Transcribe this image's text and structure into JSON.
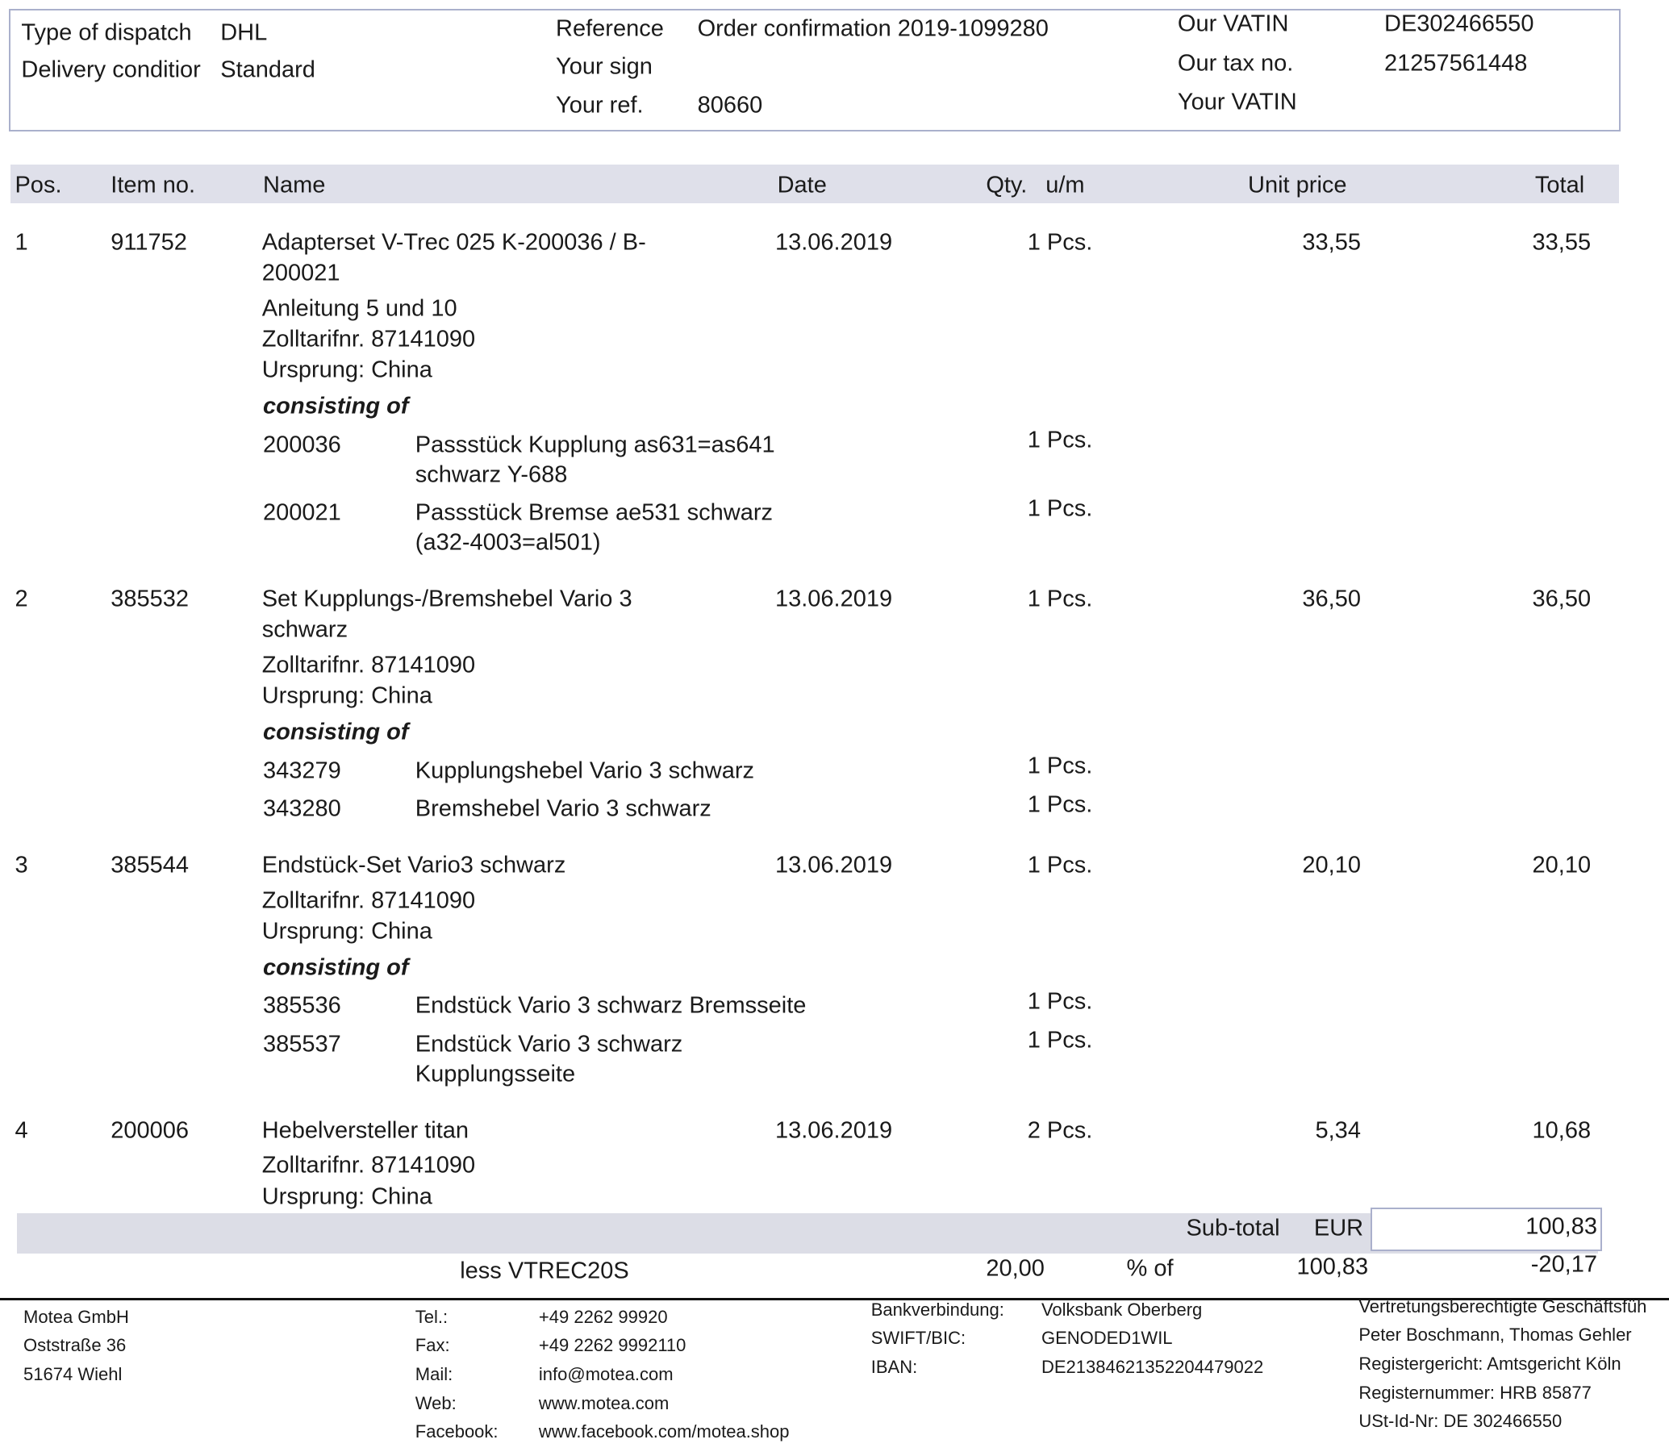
{
  "header": {
    "dispatch": [
      {
        "label": "Type of dispatch",
        "value": "DHL"
      },
      {
        "label": "Delivery conditior",
        "value": "Standard"
      }
    ],
    "reference": [
      {
        "label": "Reference",
        "value": "Order confirmation 2019-1099280"
      },
      {
        "label": "Your sign"
      },
      {
        "label": "Your ref.",
        "value": "80660"
      }
    ],
    "vat": [
      {
        "label": "Our VATIN",
        "value": "DE302466550"
      },
      {
        "label": "Our tax no.",
        "value": "21257561448"
      },
      {
        "label": "Your VATIN"
      }
    ]
  },
  "table": {
    "columns": [
      "Pos.",
      "Item no.",
      "Name",
      "Date",
      "Qty.",
      "u/m",
      "Unit price",
      "Total"
    ],
    "items": [
      {
        "pos": "1",
        "item_no": "911752",
        "name_lines": [
          "Adapterset V-Trec 025 K-200036 / B-",
          "200021"
        ],
        "notes": [
          "Anleitung 5 und 10",
          "Zolltarifnr. 87141090",
          "Ursprung: China"
        ],
        "date": "13.06.2019",
        "qty": "1 Pcs.",
        "unit_price": "33,55",
        "total": "33,55",
        "consisting_label": "consisting of",
        "components": [
          {
            "item_no": "200036",
            "name_lines": [
              "Passstück Kupplung as631=as641",
              "schwarz Y-688"
            ],
            "qty": "1 Pcs."
          },
          {
            "item_no": "200021",
            "name_lines": [
              "Passstück Bremse ae531 schwarz",
              "(a32-4003=al501)"
            ],
            "qty": "1 Pcs."
          }
        ]
      },
      {
        "pos": "2",
        "item_no": "385532",
        "name_lines": [
          "Set Kupplungs-/Bremshebel Vario 3",
          "schwarz"
        ],
        "notes": [
          "Zolltarifnr. 87141090",
          "Ursprung: China"
        ],
        "date": "13.06.2019",
        "qty": "1 Pcs.",
        "unit_price": "36,50",
        "total": "36,50",
        "consisting_label": "consisting of",
        "components": [
          {
            "item_no": "343279",
            "name_lines": [
              "Kupplungshebel Vario 3  schwarz"
            ],
            "qty": "1 Pcs."
          },
          {
            "item_no": "343280",
            "name_lines": [
              "Bremshebel Vario 3 schwarz"
            ],
            "qty": "1 Pcs."
          }
        ]
      },
      {
        "pos": "3",
        "item_no": "385544",
        "name_lines": [
          "Endstück-Set Vario3 schwarz"
        ],
        "notes": [
          "Zolltarifnr. 87141090",
          "Ursprung: China"
        ],
        "date": "13.06.2019",
        "qty": "1 Pcs.",
        "unit_price": "20,10",
        "total": "20,10",
        "consisting_label": "consisting of",
        "components": [
          {
            "item_no": "385536",
            "name_lines": [
              "Endstück Vario 3 schwarz Bremsseite"
            ],
            "qty": "1 Pcs."
          },
          {
            "item_no": "385537",
            "name_lines": [
              "Endstück Vario 3 schwarz",
              "Kupplungsseite"
            ],
            "qty": "1 Pcs."
          }
        ]
      },
      {
        "pos": "4",
        "item_no": "200006",
        "name_lines": [
          "Hebelversteller titan"
        ],
        "notes": [
          "Zolltarifnr. 87141090",
          "Ursprung: China"
        ],
        "date": "13.06.2019",
        "qty": "2 Pcs.",
        "unit_price": "5,34",
        "total": "10,68"
      }
    ]
  },
  "totals": {
    "subtotal_label": "Sub-total",
    "currency": "EUR",
    "subtotal": "100,83",
    "discount_label": "less VTREC20S",
    "discount_percent": "20,00",
    "of_label": "% of",
    "discount_base": "100,83",
    "discount_amount": "-20,17"
  },
  "footer": {
    "company": [
      "Motea GmbH",
      "Oststraße 36",
      "51674 Wiehl"
    ],
    "contacts": [
      {
        "label": "Tel.:",
        "value": "+49 2262 99920"
      },
      {
        "label": "Fax:",
        "value": "+49 2262 9992110"
      },
      {
        "label": "Mail:",
        "value": "info@motea.com"
      },
      {
        "label": "Web:",
        "value": "www.motea.com"
      },
      {
        "label": "Facebook:",
        "value": "www.facebook.com/motea.shop"
      }
    ],
    "bank": [
      {
        "label": "Bankverbindung:",
        "value": "Volksbank Oberberg"
      },
      {
        "label": "SWIFT/BIC:",
        "value": "GENODED1WIL"
      },
      {
        "label": "IBAN:",
        "value": "DE21384621352204479022"
      }
    ],
    "legal": [
      "Vertretungsberechtigte Geschäftsfüh",
      "Peter Boschmann, Thomas Gehler",
      "Registergericht: Amtsgericht Köln",
      "Registernummer: HRB 85877",
      "USt-Id-Nr: DE 302466550"
    ]
  }
}
